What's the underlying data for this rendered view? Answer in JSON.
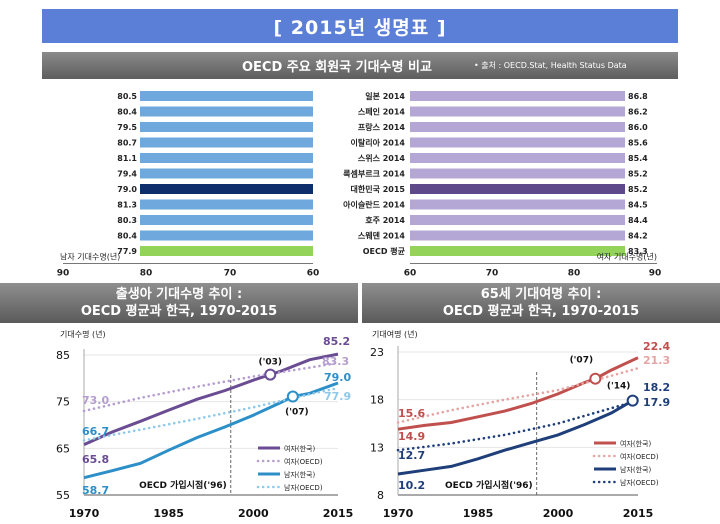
{
  "header": {
    "title": "[ 2015년 생명표 ]"
  },
  "subheader": {
    "title": "OECD 주요 회원국 기대수명 비교",
    "source": "• 출처 : OECD.Stat, Health Status Data"
  },
  "colors": {
    "male_bar": "#6fa8dc",
    "male_korea": "#0d2d6b",
    "female_bar": "#b4a7d6",
    "female_korea": "#5e4a8a",
    "oecd_avg": "#93d35a",
    "female_line": "#6a4c93",
    "female_oecd": "#b69dd0",
    "male_line": "#2c8fc8",
    "male_oecd": "#8fc9ea",
    "red_line": "#c0504d",
    "red_oecd": "#e6a4a2",
    "navy_line": "#1f3f7a",
    "navy_oecd": "#1f3f7a"
  },
  "chart_data": [
    {
      "type": "bar",
      "name": "male",
      "xlabel": "남자 기대수명(년)",
      "ticks": [
        "90",
        "80",
        "70",
        "60"
      ],
      "xlim": [
        90,
        60
      ],
      "values": [
        80.5,
        80.4,
        79.5,
        80.7,
        81.1,
        79.4,
        79.0,
        81.3,
        80.3,
        80.4,
        77.9
      ],
      "value_labels": [
        "80.5",
        "80.4",
        "79.5",
        "80.7",
        "81.1",
        "79.4",
        "79.0",
        "81.3",
        "80.3",
        "80.4",
        "77.9"
      ],
      "highlight_index": 6,
      "oecd_index": 10
    },
    {
      "type": "bar",
      "name": "female",
      "xlabel": "여자 기대수명(년)",
      "ticks": [
        "60",
        "70",
        "80",
        "90"
      ],
      "xlim": [
        60,
        90
      ],
      "categories": [
        "일본 2014",
        "스페인 2014",
        "프랑스 2014",
        "이탈리아 2014",
        "스위스 2014",
        "룩셈부르크 2014",
        "대한민국 2015",
        "아이슬란드 2014",
        "호주 2014",
        "스웨덴 2014",
        "OECD 평균"
      ],
      "values": [
        86.8,
        86.2,
        86.0,
        85.6,
        85.4,
        85.2,
        85.2,
        84.5,
        84.4,
        84.2,
        83.3
      ],
      "value_labels": [
        "86.8",
        "86.2",
        "86.0",
        "85.6",
        "85.4",
        "85.2",
        "85.2",
        "84.5",
        "84.4",
        "84.2",
        "83.3"
      ],
      "highlight_index": 6,
      "oecd_index": 10
    },
    {
      "type": "line",
      "title": "출생아 기대수명 추이 : OECD 평균과 한국, 1970-2015",
      "ylabel": "기대수명 (년)",
      "xlim": [
        1970,
        2015
      ],
      "ylim": [
        55,
        85
      ],
      "xticks": [
        "1970",
        "1985",
        "2000",
        "2015"
      ],
      "yticks": [
        "85",
        "75",
        "65",
        "55"
      ],
      "series": [
        {
          "name": "여자(한국)",
          "start": 65.8,
          "end": 85.2,
          "style": "solid",
          "points": [
            [
              1970,
              65.8
            ],
            [
              1975,
              68.5
            ],
            [
              1980,
              70.8
            ],
            [
              1985,
              73.2
            ],
            [
              1990,
              75.5
            ],
            [
              1995,
              77.4
            ],
            [
              2000,
              79.6
            ],
            [
              2003,
              80.8
            ],
            [
              2005,
              81.6
            ],
            [
              2010,
              84.0
            ],
            [
              2015,
              85.2
            ]
          ]
        },
        {
          "name": "여자(OECD)",
          "start": 73.0,
          "end": 83.3,
          "style": "dotted",
          "points": [
            [
              1970,
              73.0
            ],
            [
              1980,
              75.8
            ],
            [
              1990,
              78.2
            ],
            [
              2000,
              80.4
            ],
            [
              2010,
              82.3
            ],
            [
              2015,
              83.3
            ]
          ]
        },
        {
          "name": "남자(한국)",
          "start": 58.7,
          "end": 79.0,
          "style": "solid",
          "points": [
            [
              1970,
              58.7
            ],
            [
              1975,
              60.2
            ],
            [
              1980,
              61.8
            ],
            [
              1985,
              64.6
            ],
            [
              1990,
              67.3
            ],
            [
              1995,
              69.6
            ],
            [
              2000,
              72.1
            ],
            [
              2005,
              74.9
            ],
            [
              2007,
              76.1
            ],
            [
              2010,
              76.8
            ],
            [
              2015,
              79.0
            ]
          ]
        },
        {
          "name": "남자(OECD)",
          "start": 66.7,
          "end": 77.9,
          "style": "dotted",
          "points": [
            [
              1970,
              66.7
            ],
            [
              1980,
              69.0
            ],
            [
              1990,
              71.3
            ],
            [
              2000,
              73.8
            ],
            [
              2010,
              76.6
            ],
            [
              2015,
              77.9
            ]
          ]
        }
      ],
      "markers": [
        {
          "label": "('03)",
          "x": 2003,
          "y": 80.8
        },
        {
          "label": "('07)",
          "x": 2007,
          "y": 76.1
        }
      ],
      "annotation": "OECD 가입시점('96)",
      "annotation_x": 1996,
      "labels": {
        "f_kr_end": "85.2",
        "f_oecd_end": "83.3",
        "m_kr_end": "79.0",
        "m_oecd_end": "77.9",
        "f_oecd_start": "73.0",
        "m_oecd_start": "66.7",
        "f_kr_start": "65.8",
        "m_kr_start": "58.7"
      }
    },
    {
      "type": "line",
      "title": "65세 기대여명 추이 : OECD 평균과 한국, 1970-2015",
      "ylabel": "기대여명 (년)",
      "xlim": [
        1970,
        2015
      ],
      "ylim": [
        8,
        23
      ],
      "xticks": [
        "1970",
        "1985",
        "2000",
        "2015"
      ],
      "yticks": [
        "23",
        "18",
        "13",
        "8"
      ],
      "series": [
        {
          "name": "여자(한국)",
          "start": 14.9,
          "end": 22.4,
          "style": "solid",
          "points": [
            [
              1970,
              14.9
            ],
            [
              1975,
              15.3
            ],
            [
              1980,
              15.6
            ],
            [
              1985,
              16.2
            ],
            [
              1990,
              16.8
            ],
            [
              1995,
              17.6
            ],
            [
              2000,
              18.6
            ],
            [
              2005,
              19.8
            ],
            [
              2007,
              20.2
            ],
            [
              2010,
              21.1
            ],
            [
              2015,
              22.4
            ]
          ]
        },
        {
          "name": "여자(OECD)",
          "start": 15.6,
          "end": 21.3,
          "style": "dotted",
          "points": [
            [
              1970,
              15.6
            ],
            [
              1980,
              16.9
            ],
            [
              1990,
              18.0
            ],
            [
              2000,
              19.0
            ],
            [
              2010,
              20.5
            ],
            [
              2015,
              21.3
            ]
          ]
        },
        {
          "name": "남자(한국)",
          "start": 10.2,
          "end": 18.2,
          "style": "solid",
          "points": [
            [
              1970,
              10.2
            ],
            [
              1975,
              10.6
            ],
            [
              1980,
              11.0
            ],
            [
              1985,
              11.8
            ],
            [
              1990,
              12.7
            ],
            [
              1995,
              13.5
            ],
            [
              2000,
              14.3
            ],
            [
              2005,
              15.4
            ],
            [
              2010,
              16.6
            ],
            [
              2014,
              17.9
            ],
            [
              2015,
              18.2
            ]
          ]
        },
        {
          "name": "남자(OECD)",
          "start": 12.7,
          "end": 17.9,
          "style": "dotted",
          "points": [
            [
              1970,
              12.7
            ],
            [
              1980,
              13.4
            ],
            [
              1990,
              14.3
            ],
            [
              2000,
              15.5
            ],
            [
              2010,
              17.1
            ],
            [
              2015,
              17.9
            ]
          ]
        }
      ],
      "markers": [
        {
          "label": "('07)",
          "x": 2007,
          "y": 20.2
        },
        {
          "label": "('14)",
          "x": 2014,
          "y": 17.9
        }
      ],
      "annotation": "OECD 가입시점('96)",
      "annotation_x": 1996,
      "labels": {
        "f_kr_end": "22.4",
        "f_oecd_end": "21.3",
        "m_kr_end": "18.2",
        "m_oecd_end": "17.9",
        "f_oecd_start": "15.6",
        "f_kr_start": "14.9",
        "m_oecd_start": "12.7",
        "m_kr_start": "10.2"
      }
    }
  ]
}
